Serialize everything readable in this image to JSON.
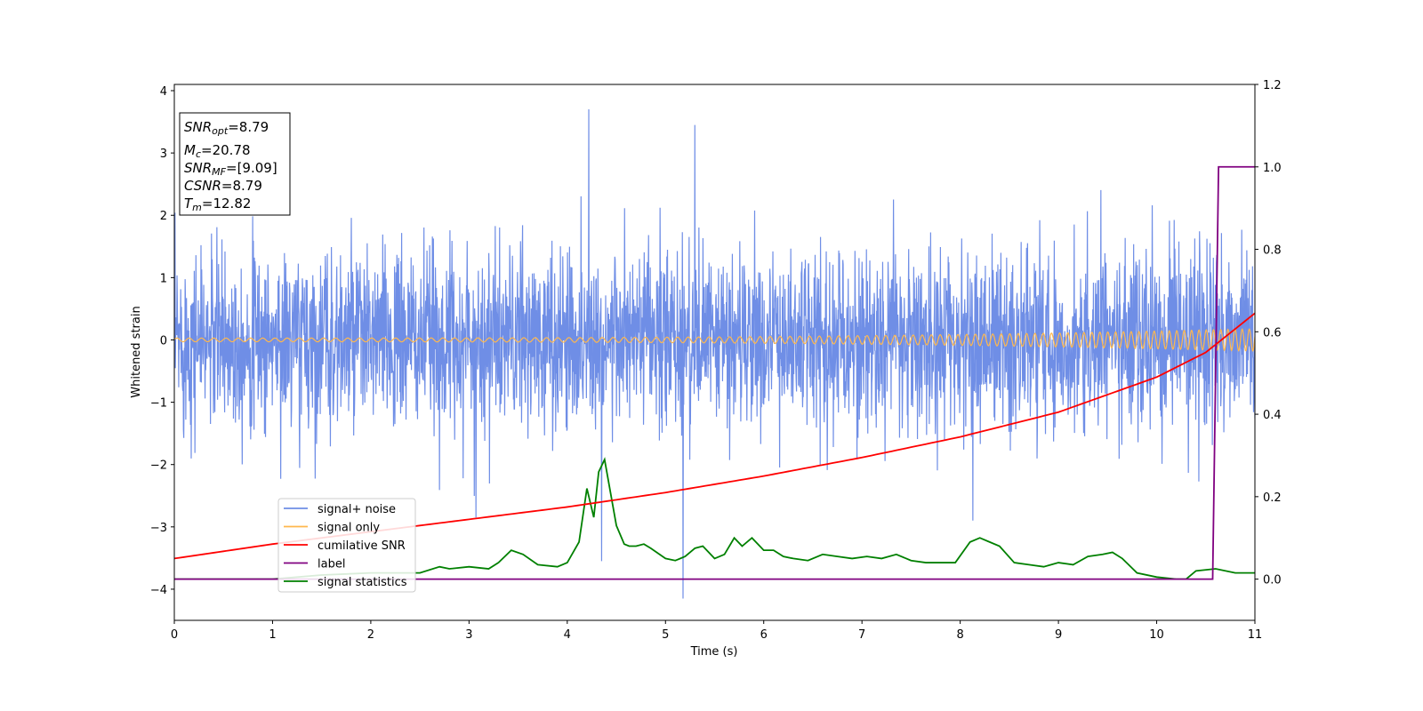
{
  "chart_data": {
    "type": "line",
    "xlabel": "Time (s)",
    "ylabel": "Whitened strain",
    "xlim": [
      0,
      11
    ],
    "ylim_left": [
      -4.5,
      4.1
    ],
    "ylim_right": [
      -0.1,
      1.2
    ],
    "x_ticks": [
      0,
      1,
      2,
      3,
      4,
      5,
      6,
      7,
      8,
      9,
      10,
      11
    ],
    "y_ticks_left": [
      4,
      3,
      2,
      1,
      0,
      -1,
      -2,
      -3,
      -4
    ],
    "y_tick_labels_left": [
      "4",
      "3",
      "2",
      "1",
      "0",
      "−1",
      "−2",
      "−3",
      "−4"
    ],
    "y_ticks_right": [
      1.2,
      1.0,
      0.8,
      0.6,
      0.4,
      0.2,
      0.0
    ],
    "y_tick_labels_right": [
      "1.2",
      "1.0",
      "0.8",
      "0.6",
      "0.4",
      "0.2",
      "0.0"
    ],
    "grid": false,
    "legend_position": "lower-left",
    "colors": {
      "noise": "#6f8ee6",
      "signal": "#ffb84d",
      "csnr": "#ff0000",
      "label": "#800080",
      "stats": "#008000"
    },
    "series": [
      {
        "name": "signal+ noise",
        "axis": "left",
        "note_visible": "dense whitened noise fluctuating between about -2.1 and 2.1",
        "spikes": [
          {
            "x": 4.22,
            "y": 3.7
          },
          {
            "x": 5.3,
            "y": 3.45
          },
          {
            "x": 5.18,
            "y": -4.15
          },
          {
            "x": 4.35,
            "y": -3.55
          },
          {
            "x": 3.07,
            "y": -2.85
          },
          {
            "x": 8.13,
            "y": -2.9
          }
        ]
      },
      {
        "name": "signal only",
        "axis": "left",
        "note_visible": "chirp oscillating around 0 with amplitude growing from 0.03 to 0.18"
      },
      {
        "name": "cumilative SNR",
        "axis": "right",
        "x": [
          0,
          1,
          2,
          3,
          4,
          5,
          6,
          7,
          8,
          9,
          10,
          10.5,
          11
        ],
        "values": [
          0.05,
          0.085,
          0.115,
          0.145,
          0.175,
          0.21,
          0.25,
          0.295,
          0.345,
          0.405,
          0.49,
          0.55,
          0.645
        ]
      },
      {
        "name": "label",
        "axis": "right",
        "x": [
          0,
          10.57,
          10.63,
          11
        ],
        "values": [
          0,
          0,
          1,
          1
        ]
      },
      {
        "name": "signal statistics",
        "axis": "right",
        "x": [
          0,
          0.5,
          1,
          1.5,
          2,
          2.5,
          2.7,
          2.8,
          3,
          3.2,
          3.3,
          3.43,
          3.55,
          3.7,
          3.9,
          4.0,
          4.12,
          4.2,
          4.27,
          4.32,
          4.38,
          4.44,
          4.5,
          4.58,
          4.63,
          4.7,
          4.78,
          4.85,
          5.0,
          5.1,
          5.2,
          5.3,
          5.38,
          5.5,
          5.6,
          5.7,
          5.78,
          5.88,
          6.0,
          6.1,
          6.2,
          6.3,
          6.45,
          6.6,
          6.75,
          6.9,
          7.05,
          7.2,
          7.35,
          7.5,
          7.65,
          7.8,
          7.95,
          8.1,
          8.2,
          8.3,
          8.4,
          8.55,
          8.7,
          8.85,
          9.0,
          9.15,
          9.3,
          9.45,
          9.55,
          9.65,
          9.8,
          10.0,
          10.2,
          10.3,
          10.4,
          10.6,
          10.8,
          11.0
        ],
        "values": [
          0.0,
          0.0,
          0.0,
          0.01,
          0.015,
          0.015,
          0.03,
          0.025,
          0.03,
          0.025,
          0.04,
          0.07,
          0.06,
          0.035,
          0.03,
          0.04,
          0.09,
          0.22,
          0.15,
          0.26,
          0.29,
          0.21,
          0.13,
          0.085,
          0.08,
          0.08,
          0.085,
          0.075,
          0.05,
          0.045,
          0.055,
          0.075,
          0.08,
          0.05,
          0.06,
          0.1,
          0.08,
          0.1,
          0.07,
          0.07,
          0.055,
          0.05,
          0.045,
          0.06,
          0.055,
          0.05,
          0.055,
          0.05,
          0.06,
          0.045,
          0.04,
          0.04,
          0.04,
          0.09,
          0.1,
          0.09,
          0.08,
          0.04,
          0.035,
          0.03,
          0.04,
          0.035,
          0.055,
          0.06,
          0.065,
          0.05,
          0.015,
          0.005,
          0.0,
          0.0,
          0.02,
          0.025,
          0.015,
          0.015
        ]
      }
    ],
    "legend": [
      "signal+ noise",
      "signal only",
      "cumilative SNR",
      "label",
      "signal statistics"
    ],
    "annotation": {
      "snr_opt": {
        "sym": "SNR",
        "sub": "opt",
        "val": "=8.79"
      },
      "mc": {
        "sym": "M",
        "sub": "c",
        "val": "=20.78"
      },
      "snr_mf": {
        "sym": "SNR",
        "sub": "MF",
        "val": "=[9.09]"
      },
      "csnr": {
        "sym": "CSNR",
        "val": "=8.79"
      },
      "tm": {
        "sym": "T",
        "sub": "m",
        "val": "=12.82"
      }
    }
  }
}
